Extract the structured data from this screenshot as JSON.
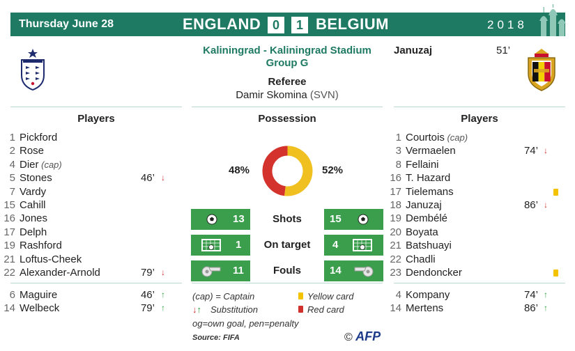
{
  "header": {
    "date": "Thursday June 28",
    "home_team": "ENGLAND",
    "home_score": "0",
    "away_score": "1",
    "away_team": "BELGIUM",
    "year": "2018"
  },
  "venue": {
    "city_stadium": "Kaliningrad - Kaliningrad Stadium",
    "group": "Group G"
  },
  "referee": {
    "label": "Referee",
    "name": "Damir Skomina",
    "country": "(SVN)"
  },
  "goal": {
    "scorer": "Januzaj",
    "minute": "51’"
  },
  "sections": {
    "players": "Players",
    "possession": "Possession"
  },
  "home_players": [
    {
      "num": "1",
      "name": "Pickford",
      "cap": "",
      "min": "",
      "mark": ""
    },
    {
      "num": "2",
      "name": "Rose",
      "cap": "",
      "min": "",
      "mark": ""
    },
    {
      "num": "4",
      "name": "Dier",
      "cap": "(cap)",
      "min": "",
      "mark": ""
    },
    {
      "num": "5",
      "name": "Stones",
      "cap": "",
      "min": "46’",
      "mark": "↓"
    },
    {
      "num": "7",
      "name": "Vardy",
      "cap": "",
      "min": "",
      "mark": ""
    },
    {
      "num": "15",
      "name": "Cahill",
      "cap": "",
      "min": "",
      "mark": ""
    },
    {
      "num": "16",
      "name": "Jones",
      "cap": "",
      "min": "",
      "mark": ""
    },
    {
      "num": "17",
      "name": "Delph",
      "cap": "",
      "min": "",
      "mark": ""
    },
    {
      "num": "19",
      "name": "Rashford",
      "cap": "",
      "min": "",
      "mark": ""
    },
    {
      "num": "21",
      "name": "Loftus-Cheek",
      "cap": "",
      "min": "",
      "mark": ""
    },
    {
      "num": "22",
      "name": "Alexander-Arnold",
      "cap": "",
      "min": "79’",
      "mark": "↓"
    }
  ],
  "home_subs": [
    {
      "num": "6",
      "name": "Maguire",
      "min": "46’",
      "mark": "↑"
    },
    {
      "num": "14",
      "name": "Welbeck",
      "min": "79’",
      "mark": "↑"
    }
  ],
  "away_players": [
    {
      "num": "1",
      "name": "Courtois",
      "cap": "(cap)",
      "min": "",
      "mark": "",
      "yellow": false
    },
    {
      "num": "3",
      "name": "Vermaelen",
      "cap": "",
      "min": "74’",
      "mark": "↓",
      "yellow": false
    },
    {
      "num": "8",
      "name": "Fellaini",
      "cap": "",
      "min": "",
      "mark": "",
      "yellow": false
    },
    {
      "num": "16",
      "name": "T. Hazard",
      "cap": "",
      "min": "",
      "mark": "",
      "yellow": false
    },
    {
      "num": "17",
      "name": "Tielemans",
      "cap": "",
      "min": "",
      "mark": "",
      "yellow": true
    },
    {
      "num": "18",
      "name": "Januzaj",
      "cap": "",
      "min": "86’",
      "mark": "↓",
      "yellow": false
    },
    {
      "num": "19",
      "name": "Dembélé",
      "cap": "",
      "min": "",
      "mark": "",
      "yellow": false
    },
    {
      "num": "20",
      "name": "Boyata",
      "cap": "",
      "min": "",
      "mark": "",
      "yellow": false
    },
    {
      "num": "21",
      "name": "Batshuayi",
      "cap": "",
      "min": "",
      "mark": "",
      "yellow": false
    },
    {
      "num": "22",
      "name": "Chadli",
      "cap": "",
      "min": "",
      "mark": "",
      "yellow": false
    },
    {
      "num": "23",
      "name": "Dendoncker",
      "cap": "",
      "min": "",
      "mark": "",
      "yellow": true
    }
  ],
  "away_subs": [
    {
      "num": "4",
      "name": "Kompany",
      "min": "74’",
      "mark": "↑"
    },
    {
      "num": "14",
      "name": "Mertens",
      "min": "86’",
      "mark": "↑"
    }
  ],
  "possession": {
    "home": "48%",
    "away": "52%",
    "home_value": 48,
    "away_value": 52,
    "home_color": "#d3332c",
    "away_color": "#f0c020"
  },
  "stats": [
    {
      "label": "Shots",
      "home": "13",
      "away": "15",
      "icon": "soccer-ball-icon"
    },
    {
      "label": "On target",
      "home": "1",
      "away": "4",
      "icon": "goal-net-icon"
    },
    {
      "label": "Fouls",
      "home": "11",
      "away": "14",
      "icon": "whistle-icon"
    }
  ],
  "legend": {
    "captain": "(cap) = Captain",
    "yellow": "Yellow card",
    "substitution": "Substitution",
    "red": "Red card",
    "og": "og=own goal, pen=penalty",
    "source": "Source: FIFA",
    "copyright": "©",
    "agency": "AFP"
  },
  "colors": {
    "brand_green": "#1e7a63",
    "stat_green": "#3a9e4c",
    "yellow_card": "#f3c300",
    "red_card": "#d0312d",
    "sub_in": "#2e9f3c",
    "sub_out": "#d0312d"
  }
}
